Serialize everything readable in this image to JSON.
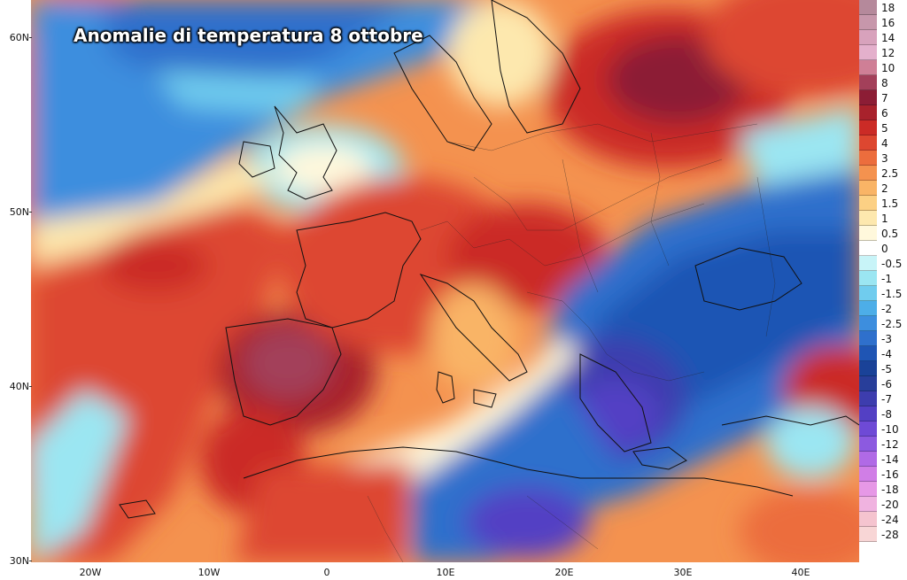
{
  "title": "Anomalie di temperatura 8 ottobre",
  "lat_labels": [
    "60N",
    "50N",
    "40N",
    "30N"
  ],
  "lon_labels": [
    "20W",
    "10W",
    "0",
    "10E",
    "20E",
    "30E",
    "40E"
  ],
  "legend": [
    {
      "label": "18",
      "color": "#b5899b"
    },
    {
      "label": "16",
      "color": "#c797ab"
    },
    {
      "label": "14",
      "color": "#d8a2bc"
    },
    {
      "label": "12",
      "color": "#e4b0cc"
    },
    {
      "label": "10",
      "color": "#cf7f96"
    },
    {
      "label": "8",
      "color": "#a3405a"
    },
    {
      "label": "7",
      "color": "#8c1d35"
    },
    {
      "label": "6",
      "color": "#a8222c"
    },
    {
      "label": "5",
      "color": "#cb2b26"
    },
    {
      "label": "4",
      "color": "#dd4730"
    },
    {
      "label": "3",
      "color": "#ec6d3d"
    },
    {
      "label": "2.5",
      "color": "#f4924f"
    },
    {
      "label": "2",
      "color": "#f9b466"
    },
    {
      "label": "1.5",
      "color": "#fcd084"
    },
    {
      "label": "1",
      "color": "#fde8ae"
    },
    {
      "label": "0.5",
      "color": "#fff8dc"
    },
    {
      "label": "0",
      "color": "#ffffff"
    },
    {
      "label": "-0.5",
      "color": "#c8f4f8"
    },
    {
      "label": "-1",
      "color": "#9be6f2"
    },
    {
      "label": "-1.5",
      "color": "#70ccee"
    },
    {
      "label": "-2",
      "color": "#4daee8"
    },
    {
      "label": "-2.5",
      "color": "#3d8ede"
    },
    {
      "label": "-3",
      "color": "#2f70cc"
    },
    {
      "label": "-4",
      "color": "#1f55b4"
    },
    {
      "label": "-5",
      "color": "#1a4298"
    },
    {
      "label": "-6",
      "color": "#283e9a"
    },
    {
      "label": "-7",
      "color": "#3d3dae"
    },
    {
      "label": "-8",
      "color": "#5340c4"
    },
    {
      "label": "-10",
      "color": "#6e4ad6"
    },
    {
      "label": "-12",
      "color": "#8c5ae0"
    },
    {
      "label": "-14",
      "color": "#b06ae6"
    },
    {
      "label": "-16",
      "color": "#d07ee6"
    },
    {
      "label": "-18",
      "color": "#e698e6"
    },
    {
      "label": "-20",
      "color": "#f0b3e0"
    },
    {
      "label": "-24",
      "color": "#f5c4cf"
    },
    {
      "label": "-28",
      "color": "#f8d6d6"
    }
  ],
  "colors": {
    "ocean_cold": "#2f70cc",
    "ocean_warm": "#ec6d3d",
    "border": "#111111"
  }
}
